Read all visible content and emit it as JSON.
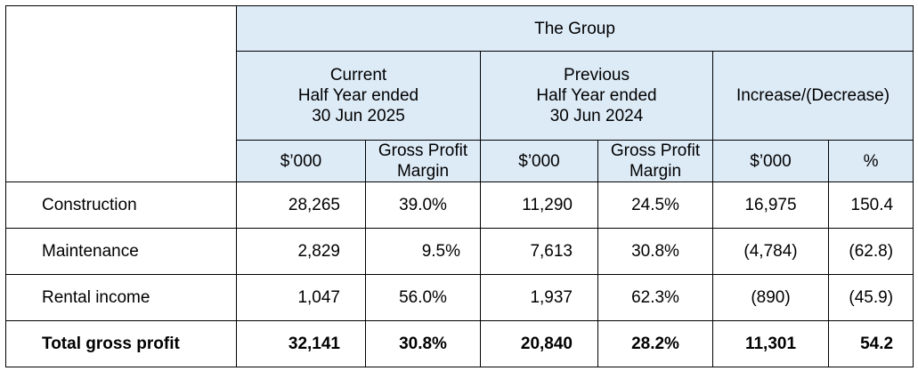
{
  "table": {
    "group_header": "The Group",
    "period_headers": {
      "current": [
        "Current",
        "Half Year ended",
        "30 Jun 2025"
      ],
      "previous": [
        "Previous",
        "Half Year ended",
        "30 Jun 2024"
      ],
      "change": "Increase/(Decrease)"
    },
    "column_headers": {
      "current_amount": "$’000",
      "current_margin": [
        "Gross Profit",
        "Margin"
      ],
      "previous_amount": "$’000",
      "previous_margin": [
        "Gross Profit",
        "Margin"
      ],
      "change_amount": "$’000",
      "change_percent": "%"
    },
    "rows": [
      {
        "label": "Construction",
        "current_amount": "28,265",
        "current_margin": "39.0%",
        "previous_amount": "11,290",
        "previous_margin": "24.5%",
        "change_amount": "16,975",
        "change_percent": "150.4"
      },
      {
        "label": "Maintenance",
        "current_amount": "2,829",
        "current_margin": "9.5%",
        "previous_amount": "7,613",
        "previous_margin": "30.8%",
        "change_amount": "(4,784)",
        "change_percent": "(62.8)"
      },
      {
        "label": "Rental income",
        "current_amount": "1,047",
        "current_margin": "56.0%",
        "previous_amount": "1,937",
        "previous_margin": "62.3%",
        "change_amount": "(890)",
        "change_percent": "(45.9)"
      }
    ],
    "total": {
      "label": "Total gross profit",
      "current_amount": "32,141",
      "current_margin": "30.8%",
      "previous_amount": "20,840",
      "previous_margin": "28.2%",
      "change_amount": "11,301",
      "change_percent": "54.2"
    }
  }
}
